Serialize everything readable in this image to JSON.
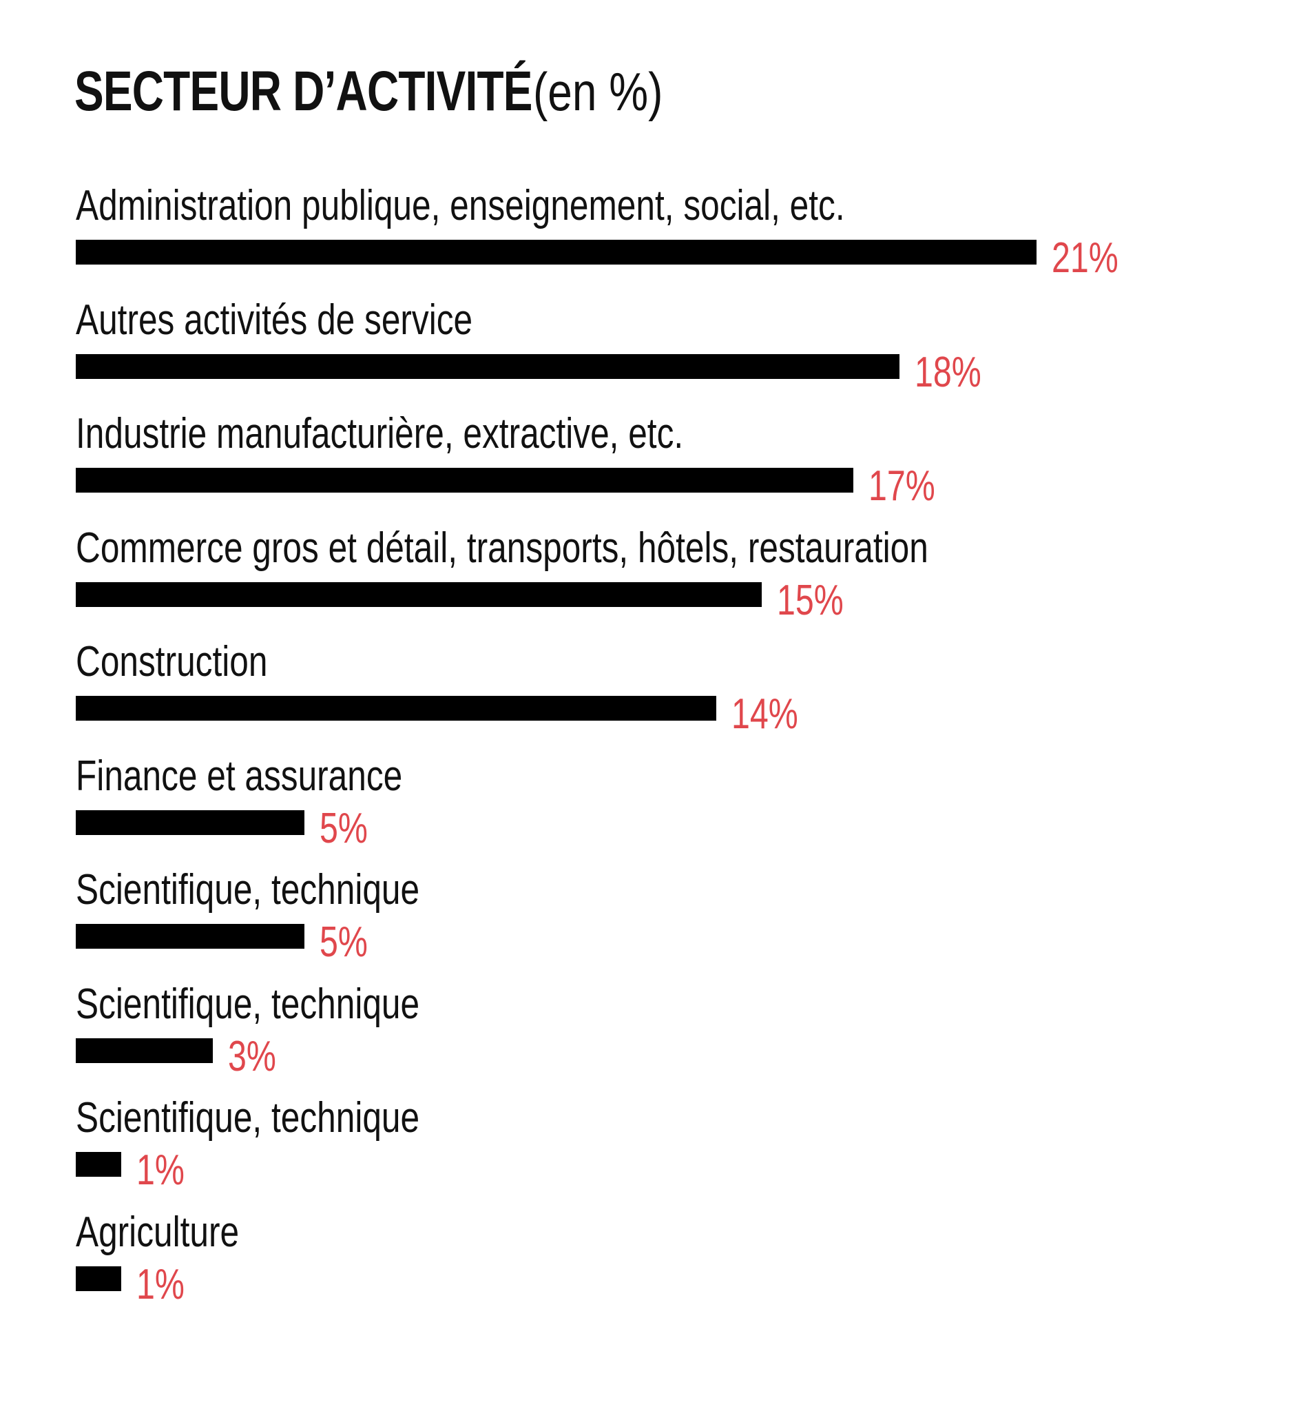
{
  "chart_data": {
    "type": "bar",
    "orientation": "horizontal",
    "title": "SECTEUR D’ACTIVITÉ",
    "subtitle": "(en %)",
    "categories": [
      "Administration publique, enseignement, social, etc.",
      "Autres activités de service",
      "Industrie manufacturière, extractive, etc.",
      "Commerce gros et détail, transports, hôtels, restauration",
      "Construction",
      "Finance et assurance",
      "Scientifique, technique",
      "Scientifique, technique",
      "Scientifique, technique",
      "Agriculture"
    ],
    "values": [
      21,
      18,
      17,
      15,
      14,
      5,
      5,
      3,
      1,
      1
    ],
    "value_labels": [
      "21%",
      "18%",
      "17%",
      "15%",
      "14%",
      "5%",
      "5%",
      "3%",
      "1%",
      "1%"
    ],
    "xlim": [
      0,
      21
    ],
    "grid": false,
    "xlabel": "",
    "ylabel": ""
  },
  "colors": {
    "bar": "#000000",
    "value_label": "#e0474c",
    "text": "#111111",
    "background": "#ffffff"
  }
}
